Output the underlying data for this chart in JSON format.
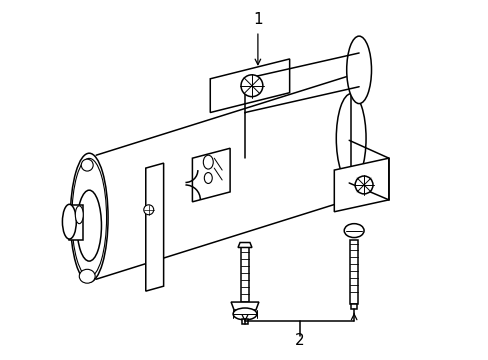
{
  "background_color": "#ffffff",
  "line_color": "#000000",
  "label_1": "1",
  "label_2": "2",
  "fig_width": 4.89,
  "fig_height": 3.6,
  "dpi": 100
}
